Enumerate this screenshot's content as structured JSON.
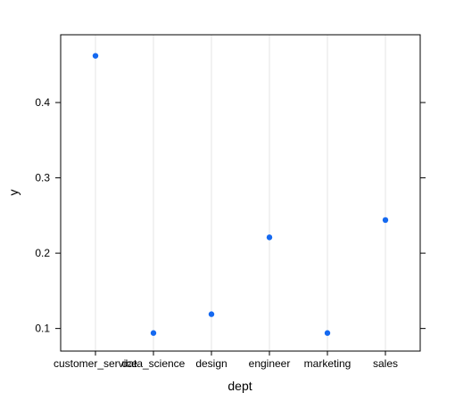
{
  "chart_data": {
    "type": "scatter",
    "title": "",
    "xlabel": "dept",
    "ylabel": "y",
    "categories": [
      "customer_service",
      "data_science",
      "design",
      "engineer",
      "marketing",
      "sales"
    ],
    "values": [
      0.462,
      0.094,
      0.119,
      0.221,
      0.094,
      0.244
    ],
    "ylim": [
      0.07,
      0.49
    ],
    "yticks": [
      0.1,
      0.2,
      0.3,
      0.4
    ],
    "ytick_labels": [
      "0.1",
      "0.2",
      "0.3",
      "0.4"
    ],
    "grid": "vertical lines at each category",
    "colors": {
      "point": "#1569f0",
      "grid": "#e6e6e6",
      "axis": "#000000"
    }
  }
}
